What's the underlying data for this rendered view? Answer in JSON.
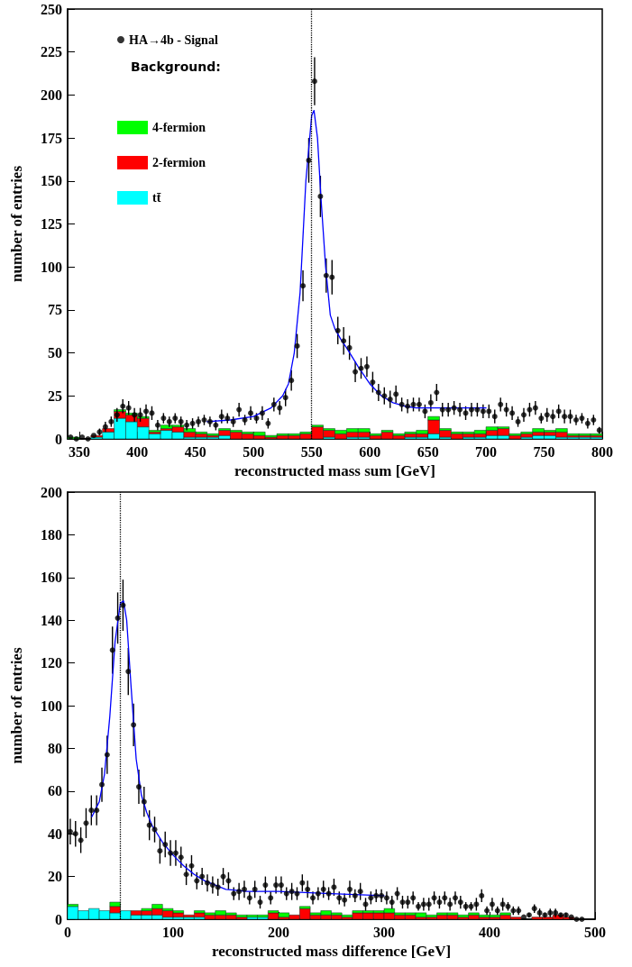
{
  "chart_data": [
    {
      "type": "bar",
      "xlabel": "reconstructed mass sum [GeV]",
      "ylabel": "number of entries",
      "xlim": [
        340,
        800
      ],
      "xticks": [
        350,
        400,
        450,
        500,
        550,
        600,
        650,
        700,
        750,
        800
      ],
      "ylim": [
        0,
        250
      ],
      "yticks": [
        0,
        25,
        50,
        75,
        100,
        125,
        150,
        175,
        200,
        225,
        250
      ],
      "stacked": true,
      "legend": "top left",
      "annotations": [
        "Background:"
      ],
      "x": [
        345,
        355,
        365,
        375,
        385,
        395,
        405,
        415,
        425,
        435,
        445,
        455,
        465,
        475,
        485,
        495,
        505,
        515,
        525,
        535,
        545,
        555,
        565,
        575,
        585,
        595,
        605,
        615,
        625,
        635,
        645,
        655,
        665,
        675,
        685,
        695,
        705,
        715,
        725,
        735,
        745,
        755,
        765,
        775,
        785,
        795
      ],
      "ref_lines": [
        {
          "axis": "x",
          "value": 550,
          "line_style": "dotted",
          "color": "#000000"
        }
      ],
      "series": [
        {
          "name": "tt̄",
          "color": "#00ffff",
          "values": [
            0,
            0,
            1,
            4,
            12,
            10,
            7,
            3,
            5,
            4,
            1,
            1,
            1,
            2,
            0,
            0,
            0,
            0,
            0,
            0,
            0,
            0,
            1,
            0,
            1,
            1,
            0,
            0,
            0,
            1,
            1,
            3,
            1,
            0,
            1,
            1,
            2,
            2,
            0,
            1,
            2,
            2,
            1,
            1,
            1,
            1
          ]
        },
        {
          "name": "2-fermion",
          "color": "#ff0000",
          "values": [
            0,
            0,
            1,
            2,
            4,
            4,
            5,
            1,
            1,
            3,
            3,
            2,
            1,
            3,
            4,
            3,
            2,
            1,
            2,
            2,
            3,
            7,
            4,
            3,
            3,
            3,
            2,
            4,
            2,
            2,
            2,
            8,
            4,
            3,
            2,
            2,
            3,
            4,
            2,
            2,
            2,
            2,
            3,
            1,
            1,
            1
          ]
        },
        {
          "name": "4-fermion",
          "color": "#00ff00",
          "values": [
            1,
            0,
            0,
            0,
            1,
            1,
            1,
            1,
            2,
            1,
            2,
            1,
            1,
            1,
            1,
            1,
            2,
            1,
            1,
            1,
            1,
            1,
            1,
            2,
            2,
            2,
            1,
            1,
            1,
            1,
            2,
            2,
            1,
            1,
            1,
            2,
            2,
            1,
            1,
            1,
            2,
            1,
            2,
            1,
            1,
            1
          ]
        },
        {
          "name": "HA→4b - Signal",
          "type": "scatter",
          "color": "#000000",
          "marker": "circle",
          "x": [
            342.5,
            347.5,
            352.5,
            357.5,
            362.5,
            367.5,
            372.5,
            377.5,
            382.5,
            387.5,
            392.5,
            397.5,
            402.5,
            407.5,
            412.5,
            417.5,
            422.5,
            427.5,
            432.5,
            437.5,
            442.5,
            447.5,
            452.5,
            457.5,
            462.5,
            467.5,
            472.5,
            477.5,
            482.5,
            487.5,
            492.5,
            497.5,
            502.5,
            507.5,
            512.5,
            517.5,
            522.5,
            527.5,
            532.5,
            537.5,
            542.5,
            547.5,
            552.5,
            557.5,
            562.5,
            567.5,
            572.5,
            577.5,
            582.5,
            587.5,
            592.5,
            597.5,
            602.5,
            607.5,
            612.5,
            617.5,
            622.5,
            627.5,
            632.5,
            637.5,
            642.5,
            647.5,
            652.5,
            657.5,
            662.5,
            667.5,
            672.5,
            677.5,
            682.5,
            687.5,
            692.5,
            697.5,
            702.5,
            707.5,
            712.5,
            717.5,
            722.5,
            727.5,
            732.5,
            737.5,
            742.5,
            747.5,
            752.5,
            757.5,
            762.5,
            767.5,
            772.5,
            777.5,
            782.5,
            787.5,
            792.5,
            797.5
          ],
          "values": [
            1,
            0,
            1,
            0,
            2,
            4,
            7,
            10,
            14,
            19,
            18,
            14,
            14,
            16,
            15,
            8,
            12,
            10,
            12,
            10,
            8,
            9,
            10,
            11,
            10,
            8,
            13,
            12,
            10,
            17,
            11,
            15,
            12,
            15,
            9,
            20,
            18,
            24,
            34,
            54,
            89,
            162,
            208,
            141,
            95,
            94,
            63,
            57,
            53,
            39,
            41,
            42,
            33,
            27,
            25,
            23,
            26,
            20,
            19,
            20,
            20,
            16,
            21,
            27,
            17,
            17,
            18,
            17,
            15,
            17,
            17,
            16,
            16,
            13,
            20,
            17,
            15,
            10,
            14,
            17,
            18,
            12,
            14,
            13,
            16,
            13,
            13,
            11,
            12,
            9,
            11,
            5
          ],
          "errors": [
            null,
            null,
            null,
            null,
            null,
            2,
            3,
            3,
            4,
            4,
            4,
            4,
            4,
            4,
            4,
            3,
            3,
            3,
            3,
            3,
            3,
            3,
            3,
            3,
            3,
            3,
            4,
            3,
            3,
            4,
            3,
            4,
            3,
            4,
            3,
            4,
            4,
            5,
            6,
            7,
            9,
            13,
            14,
            12,
            10,
            10,
            8,
            8,
            7,
            6,
            6,
            6,
            6,
            5,
            5,
            5,
            5,
            4,
            4,
            4,
            4,
            4,
            5,
            5,
            4,
            4,
            4,
            4,
            4,
            4,
            4,
            4,
            4,
            4,
            4,
            4,
            4,
            3,
            4,
            4,
            4,
            3,
            4,
            4,
            4,
            4,
            4,
            3,
            3,
            3,
            3,
            2
          ]
        },
        {
          "type": "line",
          "color": "#0000ff",
          "x": [
            460,
            480,
            500,
            515,
            525,
            530,
            535,
            540,
            545,
            550,
            552,
            555,
            558,
            562,
            566,
            570,
            575,
            580,
            590,
            600,
            610,
            620,
            630,
            640,
            660,
            680,
            700
          ],
          "values": [
            10,
            11,
            13,
            18,
            25,
            32,
            50,
            85,
            150,
            188,
            191,
            175,
            140,
            100,
            72,
            64,
            58,
            53,
            42,
            32,
            25,
            21,
            19,
            18,
            18,
            18,
            18
          ]
        }
      ]
    },
    {
      "type": "bar",
      "xlabel": "reconstructed mass difference [GeV]",
      "ylabel": "number of entries",
      "xlim": [
        0,
        500
      ],
      "xticks": [
        0,
        100,
        200,
        300,
        400,
        500
      ],
      "ylim": [
        0,
        200
      ],
      "yticks": [
        0,
        20,
        40,
        60,
        80,
        100,
        120,
        140,
        160,
        180,
        200
      ],
      "stacked": true,
      "x": [
        5,
        15,
        25,
        35,
        45,
        55,
        65,
        75,
        85,
        95,
        105,
        115,
        125,
        135,
        145,
        155,
        165,
        175,
        185,
        195,
        205,
        215,
        225,
        235,
        245,
        255,
        265,
        275,
        285,
        295,
        305,
        315,
        325,
        335,
        345,
        355,
        365,
        375,
        385,
        395,
        405,
        415,
        425,
        435,
        445,
        455,
        465,
        475,
        485,
        495
      ],
      "ref_lines": [
        {
          "axis": "x",
          "value": 50,
          "line_style": "dotted",
          "color": "#000000"
        }
      ],
      "series": [
        {
          "color": "#00ffff",
          "values": [
            6,
            4,
            5,
            4,
            3,
            4,
            2,
            2,
            2,
            1,
            1,
            1,
            1,
            0,
            0,
            0,
            0,
            1,
            1,
            0,
            0,
            0,
            0,
            0,
            0,
            0,
            0,
            0,
            0,
            0,
            0,
            0,
            0,
            0,
            0,
            0,
            0,
            0,
            0,
            0,
            0,
            0,
            0,
            0,
            0,
            0,
            0,
            0,
            0,
            0
          ]
        },
        {
          "color": "#ff0000",
          "values": [
            0,
            0,
            0,
            0,
            3,
            0,
            2,
            2,
            3,
            3,
            2,
            1,
            2,
            2,
            2,
            2,
            1,
            0,
            0,
            3,
            1,
            2,
            5,
            2,
            2,
            2,
            1,
            3,
            3,
            3,
            3,
            2,
            2,
            1,
            1,
            2,
            2,
            1,
            2,
            1,
            1,
            2,
            1,
            0,
            1,
            1,
            2,
            1,
            0,
            0
          ]
        },
        {
          "color": "#00ff00",
          "values": [
            1,
            0,
            0,
            0,
            2,
            0,
            0,
            1,
            2,
            1,
            1,
            0,
            1,
            1,
            2,
            1,
            1,
            1,
            1,
            1,
            2,
            0,
            1,
            1,
            2,
            1,
            1,
            1,
            1,
            1,
            2,
            1,
            1,
            2,
            1,
            1,
            1,
            1,
            1,
            1,
            1,
            1,
            0,
            0,
            0,
            0,
            0,
            0,
            0,
            0
          ]
        },
        {
          "type": "scatter",
          "color": "#000000",
          "marker": "circle",
          "x": [
            2.5,
            7.5,
            12.5,
            17.5,
            22.5,
            27.5,
            32.5,
            37.5,
            42.5,
            47.5,
            52.5,
            57.5,
            62.5,
            67.5,
            72.5,
            77.5,
            82.5,
            87.5,
            92.5,
            97.5,
            102.5,
            107.5,
            112.5,
            117.5,
            122.5,
            127.5,
            132.5,
            137.5,
            142.5,
            147.5,
            152.5,
            157.5,
            162.5,
            167.5,
            172.5,
            177.5,
            182.5,
            187.5,
            192.5,
            197.5,
            202.5,
            207.5,
            212.5,
            217.5,
            222.5,
            227.5,
            232.5,
            237.5,
            242.5,
            247.5,
            252.5,
            257.5,
            262.5,
            267.5,
            272.5,
            277.5,
            282.5,
            287.5,
            292.5,
            297.5,
            302.5,
            307.5,
            312.5,
            317.5,
            322.5,
            327.5,
            332.5,
            337.5,
            342.5,
            347.5,
            352.5,
            357.5,
            362.5,
            367.5,
            372.5,
            377.5,
            382.5,
            387.5,
            392.5,
            397.5,
            402.5,
            407.5,
            412.5,
            417.5,
            422.5,
            427.5,
            432.5,
            437.5,
            442.5,
            447.5,
            452.5,
            457.5,
            462.5,
            467.5,
            472.5,
            477.5,
            482.5,
            487.5
          ],
          "values": [
            41,
            40,
            37,
            45,
            51,
            51,
            63,
            77,
            126,
            141,
            147,
            116,
            91,
            62,
            55,
            44,
            42,
            32,
            35,
            31,
            31,
            29,
            21,
            25,
            18,
            20,
            17,
            16,
            15,
            20,
            18,
            12,
            13,
            14,
            10,
            14,
            8,
            16,
            10,
            16,
            16,
            12,
            13,
            12,
            17,
            14,
            10,
            12,
            14,
            12,
            15,
            10,
            9,
            14,
            11,
            13,
            7,
            10,
            11,
            11,
            10,
            8,
            12,
            8,
            8,
            10,
            6,
            7,
            7,
            10,
            8,
            10,
            7,
            10,
            8,
            6,
            6,
            7,
            11,
            4,
            7,
            4,
            7,
            6,
            4,
            4,
            1,
            2,
            5,
            3,
            2,
            3,
            3,
            2,
            2,
            1,
            0,
            0
          ],
          "errors": [
            6,
            6,
            6,
            7,
            7,
            7,
            8,
            9,
            11,
            12,
            12,
            11,
            10,
            8,
            7,
            7,
            6,
            6,
            6,
            6,
            6,
            5,
            5,
            5,
            4,
            4,
            4,
            4,
            4,
            4,
            4,
            3,
            4,
            4,
            3,
            4,
            3,
            4,
            3,
            4,
            4,
            3,
            4,
            3,
            4,
            4,
            3,
            3,
            4,
            3,
            4,
            3,
            3,
            4,
            3,
            4,
            3,
            3,
            3,
            3,
            3,
            3,
            3,
            3,
            3,
            3,
            2,
            3,
            3,
            3,
            3,
            3,
            3,
            3,
            3,
            2,
            2,
            3,
            3,
            2,
            3,
            2,
            3,
            2,
            2,
            2,
            null,
            1,
            2,
            2,
            1,
            2,
            2,
            1,
            1,
            null,
            null,
            null
          ]
        },
        {
          "type": "line",
          "color": "#0000ff",
          "x": [
            23,
            30,
            35,
            40,
            45,
            50,
            53,
            56,
            60,
            65,
            70,
            75,
            80,
            90,
            100,
            110,
            120,
            130,
            140,
            150,
            170,
            200,
            250,
            300
          ],
          "values": [
            48,
            55,
            68,
            95,
            130,
            148,
            149,
            140,
            110,
            75,
            58,
            50,
            44,
            36,
            30,
            25,
            21,
            18,
            16,
            14,
            13,
            13,
            12,
            11
          ]
        }
      ]
    }
  ]
}
